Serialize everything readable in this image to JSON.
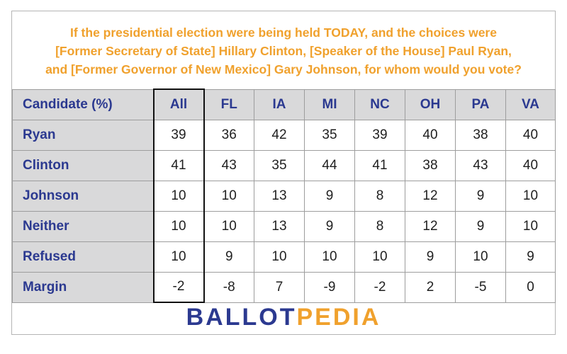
{
  "question_lines": [
    "If the presidential election were being held TODAY, and the choices were",
    "[Former Secretary of State] Hillary Clinton, [Speaker of the House] Paul Ryan,",
    "and [Former Governor of New Mexico] Gary Johnson, for whom would you vote?"
  ],
  "logo": {
    "part1": "BALLOT",
    "part2": "PEDIA"
  },
  "colors": {
    "title": "#f0a12d",
    "header_text": "#2b3990",
    "header_bg": "#d9d9da",
    "logo_blue": "#2b3990",
    "logo_orange": "#f0a12d"
  },
  "chart_data": {
    "type": "table",
    "corner_label": "Candidate (%)",
    "columns": [
      "All",
      "FL",
      "IA",
      "MI",
      "NC",
      "OH",
      "PA",
      "VA"
    ],
    "rows": [
      {
        "label": "Ryan",
        "values": [
          "39",
          "36",
          "42",
          "35",
          "39",
          "40",
          "38",
          "40"
        ]
      },
      {
        "label": "Clinton",
        "values": [
          "41",
          "43",
          "35",
          "44",
          "41",
          "38",
          "43",
          "40"
        ]
      },
      {
        "label": "Johnson",
        "values": [
          "10",
          "10",
          "13",
          "9",
          "8",
          "12",
          "9",
          "10"
        ]
      },
      {
        "label": "Neither",
        "values": [
          "10",
          "10",
          "13",
          "9",
          "8",
          "12",
          "9",
          "10"
        ]
      },
      {
        "label": "Refused",
        "values": [
          "10",
          "9",
          "10",
          "10",
          "10",
          "9",
          "10",
          "9"
        ]
      },
      {
        "label": "Margin",
        "values": [
          "-2",
          "-8",
          "7",
          "-9",
          "-2",
          "2",
          "-5",
          "0"
        ]
      }
    ]
  }
}
